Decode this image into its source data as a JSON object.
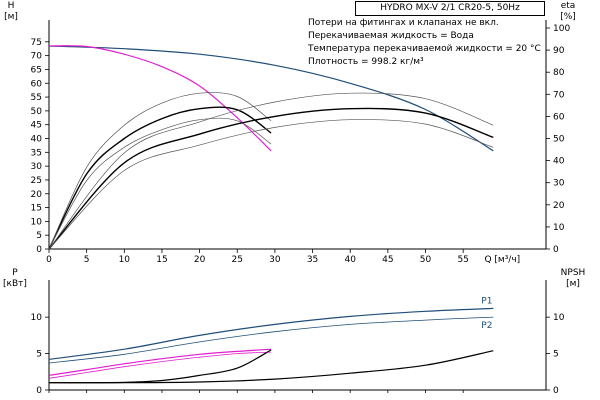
{
  "chart_data": [
    {
      "type": "line",
      "title": "HYDRO MX-V 2/1 CR20-5, 50Hz",
      "notes": [
        "Потери на фитингах и клапанах не вкл.",
        "Перекачиваемая жидкость = Вода",
        "Температура перекачиваемой жидкости = 20 °C",
        "Плотность = 998.2 кг/м³"
      ],
      "xlabel": "Q [м³/ч]",
      "xlim": [
        0,
        66
      ],
      "xticks": [
        0,
        5,
        10,
        15,
        20,
        25,
        30,
        35,
        40,
        45,
        50,
        55
      ],
      "y_left": {
        "label_top": "H",
        "label_unit": "[м]",
        "lim": [
          0,
          80
        ],
        "ticks": [
          0,
          5,
          10,
          15,
          20,
          25,
          30,
          35,
          40,
          45,
          50,
          55,
          60,
          65,
          70,
          75
        ]
      },
      "y_right": {
        "label_top": "eta",
        "label_unit": "[%]",
        "lim": [
          0,
          100
        ],
        "ticks": [
          0,
          10,
          20,
          30,
          40,
          50,
          60,
          70,
          80,
          90,
          100
        ]
      },
      "grid": false,
      "series": [
        {
          "axis": "left",
          "color": "#1f4e79",
          "width": 1.2,
          "x": [
            0,
            10,
            20,
            30,
            40,
            50,
            59
          ],
          "y": [
            73.5,
            72.5,
            70.5,
            66.5,
            60,
            50.5,
            35.5
          ]
        },
        {
          "axis": "left",
          "color": "#e020d0",
          "width": 1.2,
          "x": [
            0,
            5,
            10,
            15,
            20,
            25,
            29.5
          ],
          "y": [
            73.5,
            73.3,
            70.5,
            66,
            59,
            47.5,
            35.5
          ]
        },
        {
          "axis": "right",
          "color": "#000000",
          "width": 1.4,
          "x": [
            0,
            5,
            10,
            15,
            20,
            25,
            29.5
          ],
          "y": [
            0,
            34,
            50,
            59,
            63.5,
            63,
            52.5
          ]
        },
        {
          "axis": "right",
          "color": "#555555",
          "width": 0.7,
          "x": [
            0,
            5,
            10,
            15,
            20,
            25,
            29.5
          ],
          "y": [
            0,
            37,
            56,
            66,
            70.5,
            69,
            58
          ]
        },
        {
          "axis": "right",
          "color": "#555555",
          "width": 0.7,
          "x": [
            0,
            5,
            10,
            15,
            20,
            25,
            29.5
          ],
          "y": [
            0,
            31,
            46,
            54,
            58.5,
            58,
            47.5
          ]
        },
        {
          "axis": "right",
          "color": "#000000",
          "width": 1.4,
          "x": [
            0,
            10,
            20,
            30,
            40,
            50,
            59
          ],
          "y": [
            0,
            39,
            52,
            60,
            63.5,
            61.5,
            50.5
          ]
        },
        {
          "axis": "right",
          "color": "#555555",
          "width": 0.7,
          "x": [
            0,
            10,
            20,
            30,
            40,
            50,
            59
          ],
          "y": [
            0,
            43.5,
            57.5,
            66.5,
            70.5,
            68,
            56
          ]
        },
        {
          "axis": "right",
          "color": "#555555",
          "width": 0.7,
          "x": [
            0,
            10,
            20,
            30,
            40,
            50,
            59
          ],
          "y": [
            0,
            35.5,
            47,
            55,
            58.5,
            56.5,
            46
          ]
        }
      ]
    },
    {
      "type": "line",
      "xlim": [
        0,
        66
      ],
      "y_left": {
        "label_top": "P",
        "label_unit": "[кВт]",
        "lim": [
          0,
          14
        ],
        "ticks": [
          0,
          5,
          10
        ]
      },
      "y_right": {
        "label_top": "NPSH",
        "label_unit": "[м]",
        "lim": [
          0,
          14
        ],
        "ticks": [
          0,
          5,
          10
        ]
      },
      "grid": false,
      "series": [
        {
          "name": "P1",
          "axis": "left",
          "color": "#1f4e79",
          "width": 1.2,
          "x": [
            0,
            10,
            20,
            30,
            40,
            50,
            59
          ],
          "y": [
            4.2,
            5.6,
            7.5,
            9.0,
            10.1,
            10.8,
            11.2
          ]
        },
        {
          "name": "P2",
          "axis": "left",
          "color": "#1f4e79",
          "width": 0.8,
          "x": [
            0,
            10,
            20,
            30,
            40,
            50,
            59
          ],
          "y": [
            3.7,
            4.9,
            6.6,
            8.0,
            9.0,
            9.6,
            10.0
          ]
        },
        {
          "axis": "left",
          "color": "#e020d0",
          "width": 1.2,
          "x": [
            0,
            5,
            10,
            15,
            20,
            25,
            29.5
          ],
          "y": [
            2.0,
            2.8,
            3.6,
            4.3,
            4.9,
            5.3,
            5.6
          ]
        },
        {
          "axis": "left",
          "color": "#e020d0",
          "width": 0.8,
          "x": [
            0,
            5,
            10,
            15,
            20,
            25,
            29.5
          ],
          "y": [
            1.6,
            2.4,
            3.2,
            3.9,
            4.5,
            5.0,
            5.2
          ]
        },
        {
          "axis": "right",
          "color": "#000000",
          "width": 1.2,
          "x": [
            0,
            5,
            10,
            15,
            20,
            25,
            29.5
          ],
          "y": [
            1.0,
            1.0,
            1.05,
            1.3,
            2.0,
            3.0,
            5.5
          ]
        },
        {
          "axis": "right",
          "color": "#000000",
          "width": 1.2,
          "x": [
            0,
            10,
            20,
            30,
            40,
            50,
            59
          ],
          "y": [
            1.0,
            1.0,
            1.1,
            1.5,
            2.3,
            3.4,
            5.4
          ]
        }
      ]
    }
  ]
}
